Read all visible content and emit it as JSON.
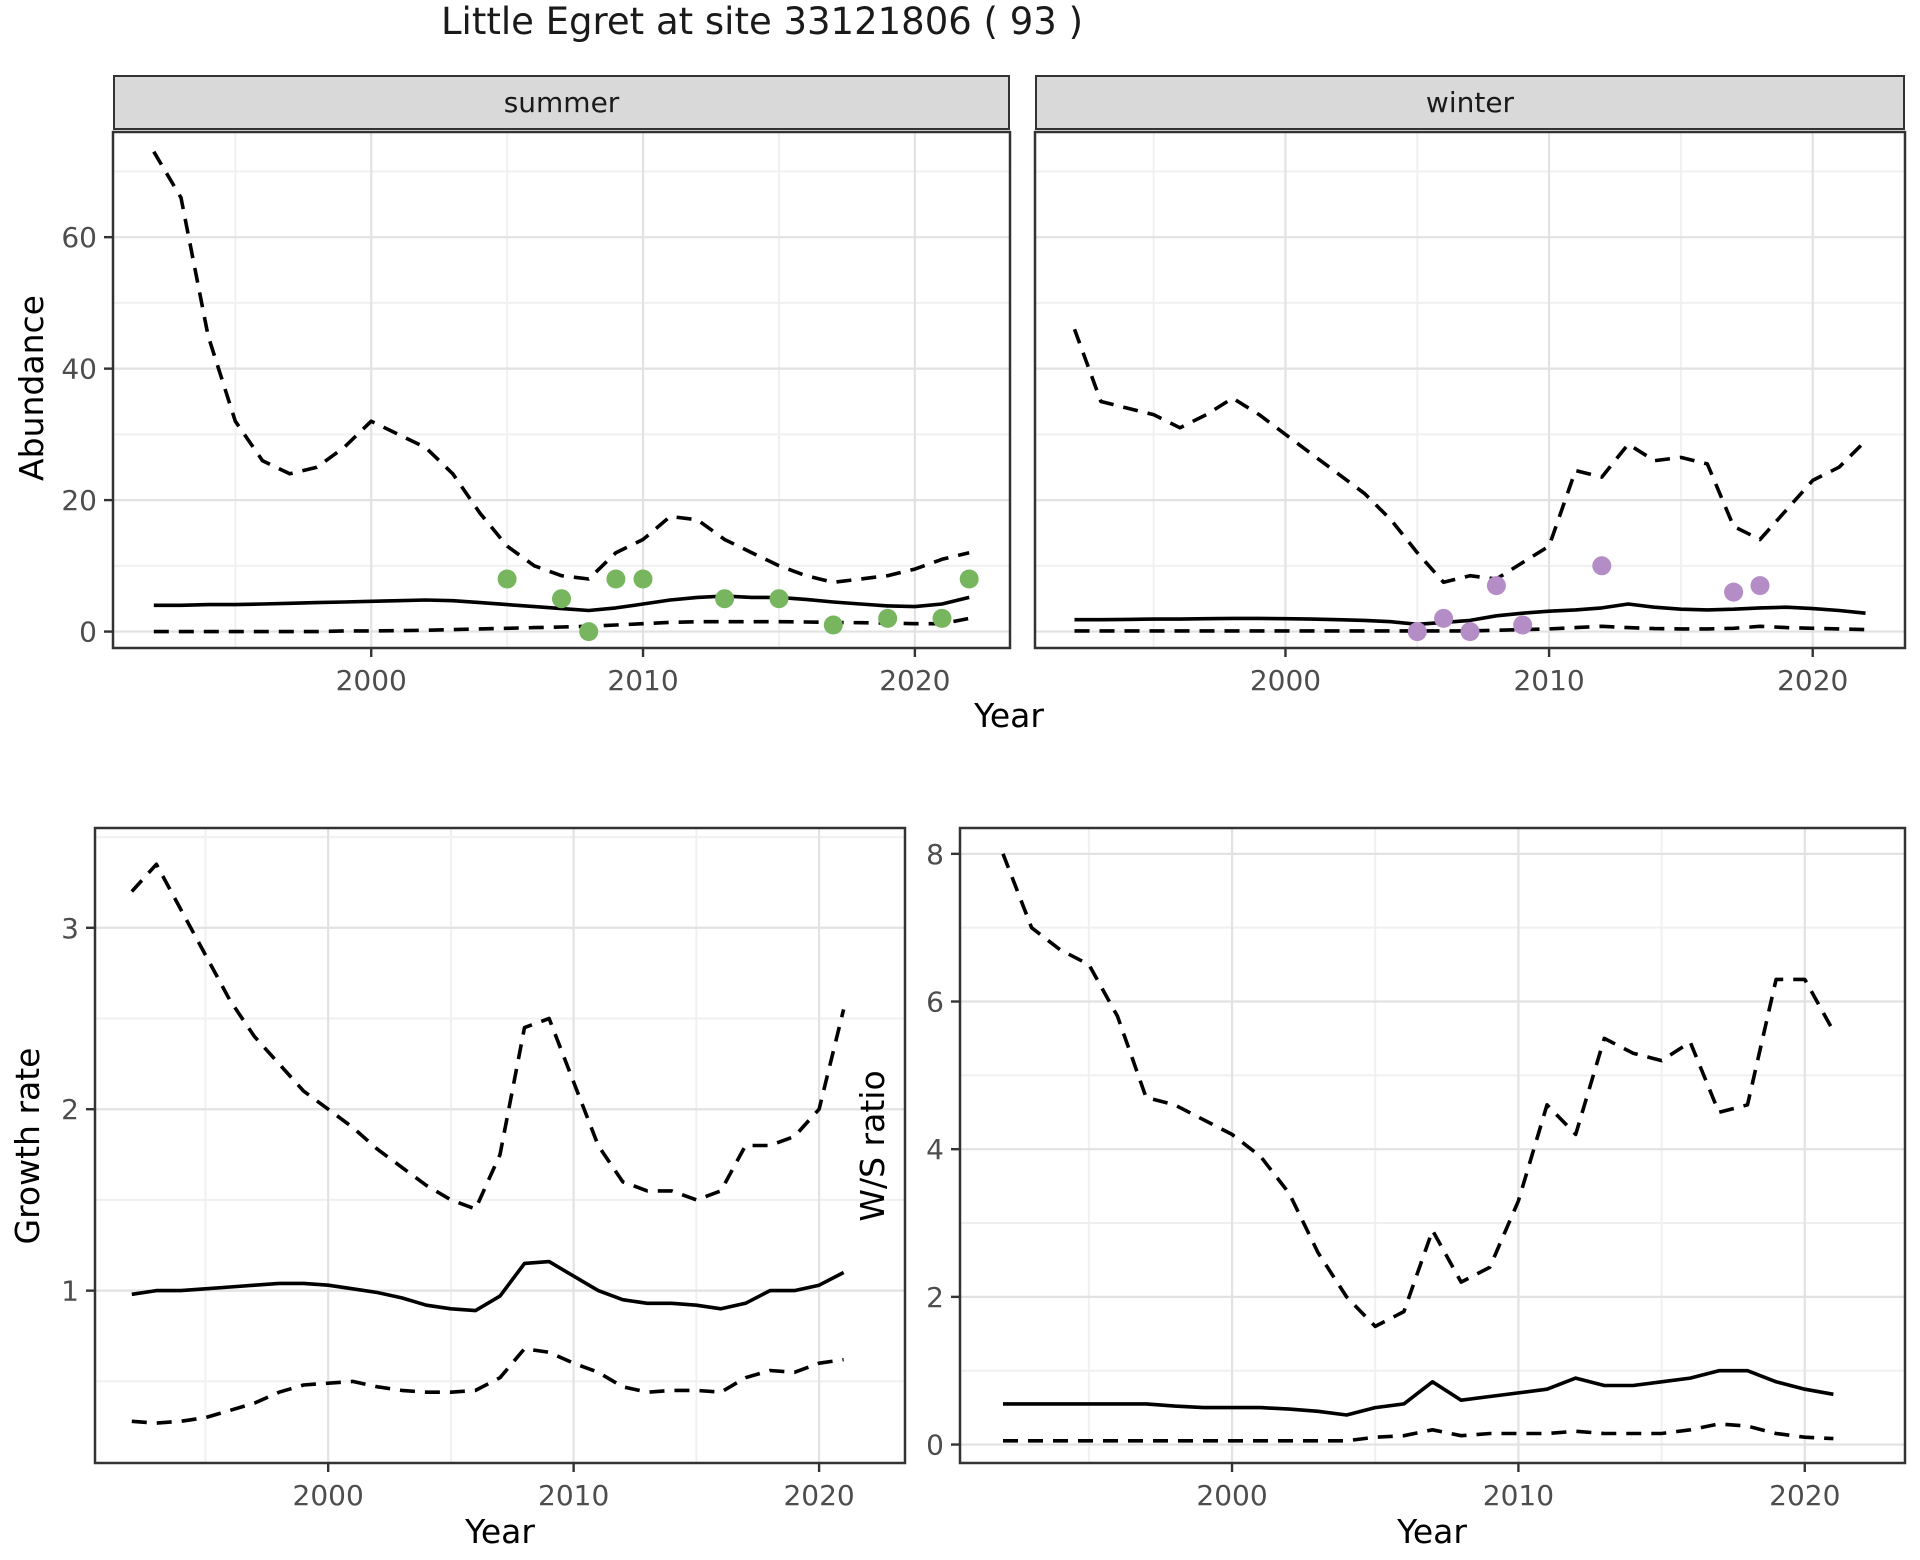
{
  "page": {
    "title": "Little Egret at site 33121806 ( 93 )"
  },
  "facets": {
    "summer": "summer",
    "winter": "winter"
  },
  "axis_labels": {
    "x": "Year",
    "abundance": "Abundance",
    "growth_rate": "Growth rate",
    "ws_ratio": "W/S ratio"
  },
  "colors": {
    "summer_points": "#77B55F",
    "winter_points": "#B48CC6",
    "line": "#000000",
    "strip_bg": "#D9D9D9",
    "panel_border": "#333333",
    "grid": "#E2E2E2"
  },
  "chart_data": [
    {
      "id": "abundance_summer",
      "type": "line",
      "facet": "summer",
      "xlabel": "Year",
      "ylabel": "Abundance",
      "xlim": [
        1990.5,
        2023.5
      ],
      "ylim": [
        -2.5,
        76
      ],
      "xticks": [
        2000,
        2010,
        2020
      ],
      "xminor": [
        1995,
        2005,
        2015
      ],
      "yticks": [
        0,
        20,
        40,
        60
      ],
      "yminor": [
        10,
        30,
        50,
        70
      ],
      "x": [
        1992,
        1993,
        1994,
        1995,
        1996,
        1997,
        1998,
        1999,
        2000,
        2001,
        2002,
        2003,
        2004,
        2005,
        2006,
        2007,
        2008,
        2009,
        2010,
        2011,
        2012,
        2013,
        2014,
        2015,
        2016,
        2017,
        2018,
        2019,
        2020,
        2021,
        2022
      ],
      "series": [
        {
          "name": "upper-ci",
          "style": "dashed",
          "values": [
            73,
            66,
            45,
            32,
            26,
            24,
            25,
            28,
            32,
            30,
            28,
            24,
            18,
            13,
            10,
            8.5,
            8,
            12,
            14,
            17.5,
            17,
            14,
            12,
            10,
            8.5,
            7.5,
            8,
            8.5,
            9.5,
            11,
            12
          ]
        },
        {
          "name": "fitted",
          "style": "solid",
          "values": [
            4.0,
            4.0,
            4.1,
            4.1,
            4.2,
            4.3,
            4.4,
            4.5,
            4.6,
            4.7,
            4.8,
            4.7,
            4.4,
            4.1,
            3.8,
            3.5,
            3.2,
            3.6,
            4.2,
            4.8,
            5.2,
            5.4,
            5.2,
            5.2,
            4.9,
            4.5,
            4.2,
            3.9,
            3.8,
            4.2,
            5.2
          ]
        },
        {
          "name": "lower-ci",
          "style": "dashed",
          "values": [
            0,
            0,
            0,
            0,
            0,
            0,
            0,
            0.1,
            0.1,
            0.15,
            0.2,
            0.3,
            0.4,
            0.5,
            0.6,
            0.7,
            0.8,
            1.0,
            1.2,
            1.4,
            1.5,
            1.5,
            1.5,
            1.5,
            1.45,
            1.4,
            1.35,
            1.3,
            1.2,
            1.2,
            2.0
          ]
        }
      ],
      "observed_points": [
        [
          2005,
          8
        ],
        [
          2007,
          5
        ],
        [
          2008,
          0
        ],
        [
          2009,
          8
        ],
        [
          2010,
          8
        ],
        [
          2013,
          5
        ],
        [
          2015,
          5
        ],
        [
          2017,
          1
        ],
        [
          2019,
          2
        ],
        [
          2021,
          2
        ],
        [
          2022,
          8
        ]
      ],
      "point_color": "#77B55F"
    },
    {
      "id": "abundance_winter",
      "type": "line",
      "facet": "winter",
      "xlabel": "Year",
      "ylabel": "Abundance",
      "xlim": [
        1990.5,
        2023.5
      ],
      "ylim": [
        -2.5,
        76
      ],
      "xticks": [
        2000,
        2010,
        2020
      ],
      "xminor": [
        1995,
        2005,
        2015
      ],
      "yticks": [
        0,
        20,
        40,
        60
      ],
      "yminor": [
        10,
        30,
        50,
        70
      ],
      "x": [
        1992,
        1993,
        1994,
        1995,
        1996,
        1997,
        1998,
        1999,
        2000,
        2001,
        2002,
        2003,
        2004,
        2005,
        2006,
        2007,
        2008,
        2009,
        2010,
        2011,
        2012,
        2013,
        2014,
        2015,
        2016,
        2017,
        2018,
        2019,
        2020,
        2021,
        2022
      ],
      "series": [
        {
          "name": "upper-ci",
          "style": "dashed",
          "values": [
            46,
            35,
            34,
            33,
            31,
            33,
            35.5,
            33,
            30,
            27,
            24,
            21,
            17,
            12,
            7.5,
            8.5,
            8,
            10.5,
            13,
            24.5,
            23.5,
            28.5,
            26,
            26.5,
            25.5,
            16,
            14,
            18.5,
            23,
            25,
            29
          ]
        },
        {
          "name": "fitted",
          "style": "solid",
          "values": [
            1.8,
            1.8,
            1.85,
            1.9,
            1.9,
            1.95,
            2.0,
            2.0,
            1.95,
            1.9,
            1.8,
            1.7,
            1.5,
            1.1,
            1.4,
            1.7,
            2.4,
            2.8,
            3.1,
            3.3,
            3.6,
            4.2,
            3.7,
            3.4,
            3.3,
            3.4,
            3.6,
            3.7,
            3.5,
            3.2,
            2.8
          ]
        },
        {
          "name": "lower-ci",
          "style": "dashed",
          "values": [
            0.1,
            0.1,
            0.1,
            0.1,
            0.1,
            0.1,
            0.1,
            0.1,
            0.1,
            0.1,
            0.1,
            0.1,
            0.1,
            0.1,
            0.1,
            0.1,
            0.2,
            0.3,
            0.4,
            0.6,
            0.8,
            0.6,
            0.45,
            0.4,
            0.4,
            0.5,
            0.8,
            0.6,
            0.5,
            0.4,
            0.3
          ]
        }
      ],
      "observed_points": [
        [
          2005,
          0
        ],
        [
          2006,
          2
        ],
        [
          2007,
          0
        ],
        [
          2008,
          7
        ],
        [
          2009,
          1
        ],
        [
          2012,
          10
        ],
        [
          2017,
          6
        ],
        [
          2018,
          7
        ]
      ],
      "point_color": "#B48CC6"
    },
    {
      "id": "growth_rate",
      "type": "line",
      "xlabel": "Year",
      "ylabel": "Growth rate",
      "xlim": [
        1990.5,
        2023.5
      ],
      "ylim": [
        0.05,
        3.55
      ],
      "xticks": [
        2000,
        2010,
        2020
      ],
      "xminor": [
        1995,
        2005,
        2015
      ],
      "yticks": [
        1,
        2,
        3
      ],
      "yminor": [
        0.5,
        1.5,
        2.5,
        3.5
      ],
      "x": [
        1992,
        1993,
        1994,
        1995,
        1996,
        1997,
        1998,
        1999,
        2000,
        2001,
        2002,
        2003,
        2004,
        2005,
        2006,
        2007,
        2008,
        2009,
        2010,
        2011,
        2012,
        2013,
        2014,
        2015,
        2016,
        2017,
        2018,
        2019,
        2020,
        2021
      ],
      "series": [
        {
          "name": "upper-ci",
          "style": "dashed",
          "values": [
            3.2,
            3.35,
            3.1,
            2.85,
            2.6,
            2.4,
            2.25,
            2.1,
            2.0,
            1.9,
            1.78,
            1.68,
            1.58,
            1.5,
            1.45,
            1.75,
            2.45,
            2.5,
            2.15,
            1.8,
            1.6,
            1.55,
            1.55,
            1.5,
            1.55,
            1.8,
            1.8,
            1.85,
            2.0,
            2.55
          ]
        },
        {
          "name": "fitted",
          "style": "solid",
          "values": [
            0.98,
            1.0,
            1.0,
            1.01,
            1.02,
            1.03,
            1.04,
            1.04,
            1.03,
            1.01,
            0.99,
            0.96,
            0.92,
            0.9,
            0.89,
            0.97,
            1.15,
            1.16,
            1.08,
            1.0,
            0.95,
            0.93,
            0.93,
            0.92,
            0.9,
            0.93,
            1.0,
            1.0,
            1.03,
            1.1
          ]
        },
        {
          "name": "lower-ci",
          "style": "dashed",
          "values": [
            0.28,
            0.27,
            0.28,
            0.3,
            0.34,
            0.38,
            0.44,
            0.48,
            0.49,
            0.5,
            0.47,
            0.45,
            0.44,
            0.44,
            0.45,
            0.52,
            0.68,
            0.66,
            0.6,
            0.55,
            0.47,
            0.44,
            0.45,
            0.45,
            0.44,
            0.52,
            0.56,
            0.55,
            0.6,
            0.62
          ]
        }
      ],
      "observed_points": [],
      "point_color": "#000000"
    },
    {
      "id": "ws_ratio",
      "type": "line",
      "xlabel": "Year",
      "ylabel": "W/S ratio",
      "xlim": [
        1990.5,
        2023.5
      ],
      "ylim": [
        -0.25,
        8.35
      ],
      "xticks": [
        2000,
        2010,
        2020
      ],
      "xminor": [
        1995,
        2005,
        2015
      ],
      "yticks": [
        0,
        2,
        4,
        6,
        8
      ],
      "yminor": [
        1,
        3,
        5,
        7
      ],
      "x": [
        1992,
        1993,
        1994,
        1995,
        1996,
        1997,
        1998,
        1999,
        2000,
        2001,
        2002,
        2003,
        2004,
        2005,
        2006,
        2007,
        2008,
        2009,
        2010,
        2011,
        2012,
        2013,
        2014,
        2015,
        2016,
        2017,
        2018,
        2019,
        2020,
        2021
      ],
      "series": [
        {
          "name": "upper-ci",
          "style": "dashed",
          "values": [
            8.0,
            7.0,
            6.7,
            6.5,
            5.8,
            4.7,
            4.6,
            4.4,
            4.2,
            3.9,
            3.4,
            2.6,
            2.0,
            1.6,
            1.8,
            2.9,
            2.2,
            2.4,
            3.3,
            4.6,
            4.2,
            5.5,
            5.3,
            5.2,
            5.45,
            4.5,
            4.6,
            6.3,
            6.3,
            5.6
          ]
        },
        {
          "name": "fitted",
          "style": "solid",
          "values": [
            0.55,
            0.55,
            0.55,
            0.55,
            0.55,
            0.55,
            0.52,
            0.5,
            0.5,
            0.5,
            0.48,
            0.45,
            0.4,
            0.5,
            0.55,
            0.85,
            0.6,
            0.65,
            0.7,
            0.75,
            0.9,
            0.8,
            0.8,
            0.85,
            0.9,
            1.0,
            1.0,
            0.85,
            0.75,
            0.68
          ]
        },
        {
          "name": "lower-ci",
          "style": "dashed",
          "values": [
            0.05,
            0.05,
            0.05,
            0.05,
            0.05,
            0.05,
            0.05,
            0.05,
            0.05,
            0.05,
            0.05,
            0.05,
            0.05,
            0.1,
            0.12,
            0.2,
            0.12,
            0.15,
            0.15,
            0.15,
            0.18,
            0.15,
            0.15,
            0.15,
            0.2,
            0.28,
            0.25,
            0.15,
            0.1,
            0.08
          ]
        }
      ],
      "observed_points": [],
      "point_color": "#000000"
    }
  ]
}
